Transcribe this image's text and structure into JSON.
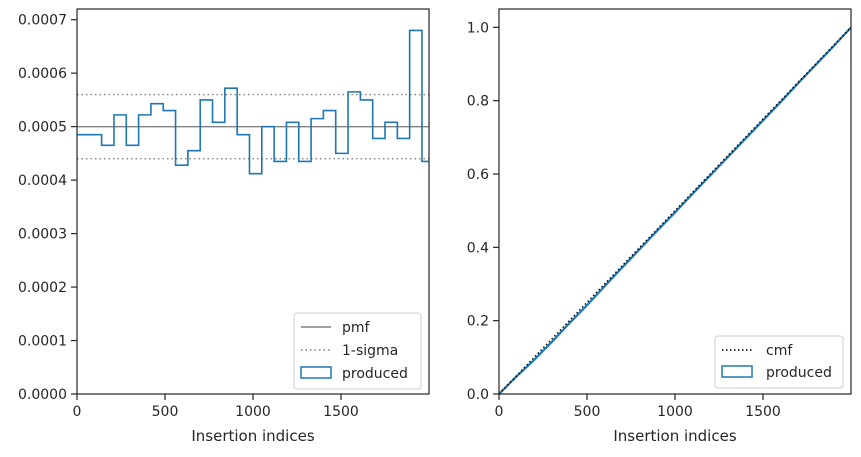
{
  "colors": {
    "series": "#1f77b4",
    "pmf": "#808080",
    "sigma": "#808080",
    "cmf": "#000000",
    "axes": "#262626"
  },
  "chart_data": [
    {
      "type": "step",
      "xlabel": "Insertion indices",
      "ylabel": "",
      "xlim": [
        0,
        2000
      ],
      "ylim": [
        0,
        0.00072
      ],
      "xticks": [
        "0",
        "500",
        "1000",
        "1500"
      ],
      "yticks": [
        "0.0000",
        "0.0001",
        "0.0002",
        "0.0003",
        "0.0004",
        "0.0005",
        "0.0006",
        "0.0007"
      ],
      "ytick_values": [
        0,
        0.0001,
        0.0002,
        0.0003,
        0.0004,
        0.0005,
        0.0006,
        0.0007
      ],
      "pmf_value": 0.0005,
      "sigma_values": [
        0.00044,
        0.00056
      ],
      "bin_edges": [
        0,
        140,
        210,
        280,
        350,
        420,
        490,
        560,
        630,
        700,
        770,
        840,
        910,
        980,
        1050,
        1120,
        1190,
        1260,
        1330,
        1400,
        1470,
        1540,
        1610,
        1680,
        1750,
        1820,
        1890,
        1960,
        2000
      ],
      "values": [
        0.000485,
        0.000465,
        0.000522,
        0.000465,
        0.000522,
        0.000543,
        0.00053,
        0.000428,
        0.000455,
        0.00055,
        0.000508,
        0.000572,
        0.000485,
        0.000412,
        0.0005,
        0.000435,
        0.000508,
        0.000435,
        0.000515,
        0.00053,
        0.00045,
        0.000565,
        0.00055,
        0.000478,
        0.000508,
        0.000478,
        0.00068,
        0.000435
      ],
      "legend": {
        "placement": "lower-right",
        "entries": [
          "pmf",
          "1-sigma",
          "produced"
        ]
      }
    },
    {
      "type": "line",
      "xlabel": "Insertion indices",
      "ylabel": "",
      "xlim": [
        0,
        2000
      ],
      "ylim": [
        0,
        1.05
      ],
      "xticks": [
        "0",
        "500",
        "1000",
        "1500"
      ],
      "yticks": [
        "0.0",
        "0.2",
        "0.4",
        "0.6",
        "0.8",
        "1.0"
      ],
      "ytick_values": [
        0,
        0.2,
        0.4,
        0.6,
        0.8,
        1.0
      ],
      "cmf": {
        "x": [
          0,
          2000
        ],
        "y": [
          0,
          1.0
        ]
      },
      "produced": {
        "x": [
          0,
          100,
          200,
          300,
          400,
          500,
          600,
          700,
          800,
          900,
          1000,
          1100,
          1200,
          1300,
          1400,
          1500,
          1600,
          1700,
          1800,
          1900,
          2000
        ],
        "y": [
          0,
          0.048,
          0.093,
          0.142,
          0.193,
          0.242,
          0.294,
          0.345,
          0.395,
          0.446,
          0.495,
          0.546,
          0.596,
          0.646,
          0.696,
          0.746,
          0.796,
          0.848,
          0.898,
          0.948,
          1.0
        ]
      },
      "legend": {
        "placement": "lower-right",
        "entries": [
          "cmf",
          "produced"
        ]
      }
    }
  ]
}
